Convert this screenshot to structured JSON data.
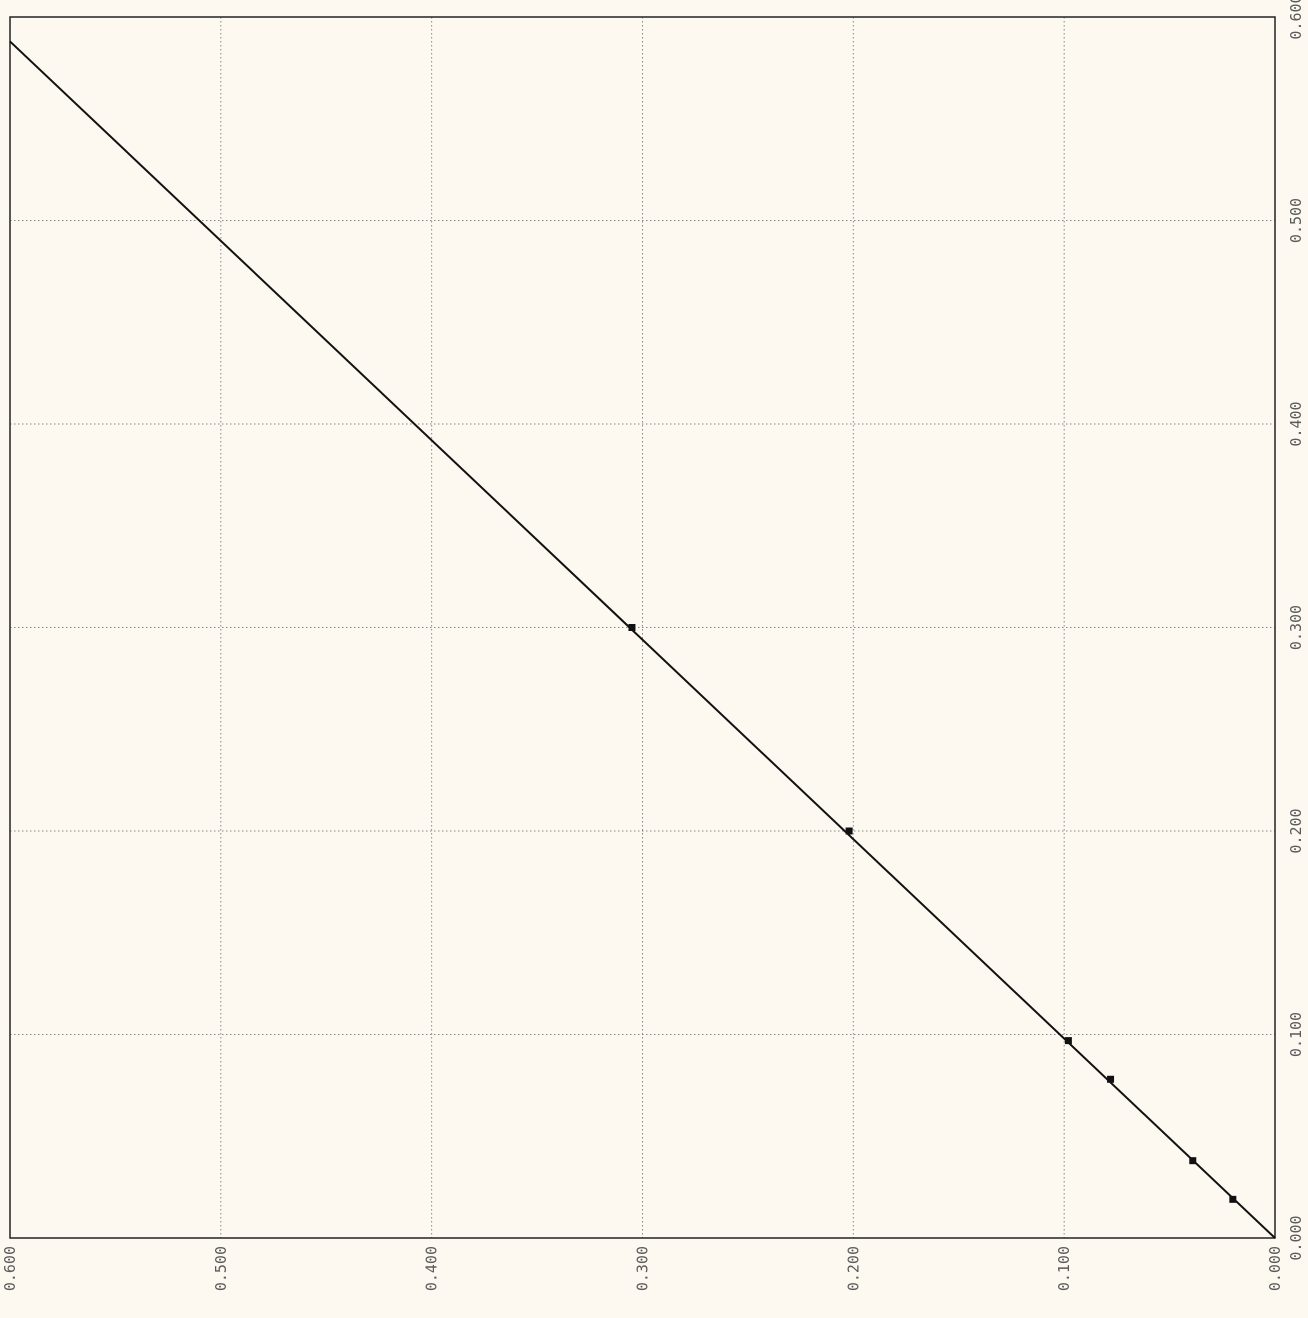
{
  "chart_data": {
    "type": "line",
    "title": "",
    "xlabel": "",
    "ylabel": "",
    "x_axis": {
      "reversed": true,
      "range": [
        0.6,
        0.0
      ],
      "ticks": [
        "0.600",
        "0.500",
        "0.400",
        "0.300",
        "0.200",
        "0.100",
        "0.000"
      ],
      "tick_values": [
        0.6,
        0.5,
        0.4,
        0.3,
        0.2,
        0.1,
        0.0
      ],
      "label_position": "bottom",
      "label_orientation": "rotated"
    },
    "y_axis": {
      "range": [
        0.0,
        0.6
      ],
      "ticks": [
        "0.000",
        "0.100",
        "0.200",
        "0.300",
        "0.400",
        "0.500",
        "0.600"
      ],
      "tick_values": [
        0.0,
        0.1,
        0.2,
        0.3,
        0.4,
        0.5,
        0.6
      ],
      "label_position": "right",
      "label_orientation": "rotated"
    },
    "grid": true,
    "grid_style": "dotted",
    "legend": "none",
    "series": [
      {
        "line": {
          "from": [
            0.6,
            0.588
          ],
          "to": [
            0.0,
            0.0
          ]
        },
        "marker_points": [
          [
            0.305,
            0.3
          ],
          [
            0.202,
            0.2
          ],
          [
            0.098,
            0.097
          ],
          [
            0.078,
            0.078
          ],
          [
            0.039,
            0.038
          ],
          [
            0.02,
            0.019
          ]
        ]
      }
    ],
    "colors": {
      "background": "#fdf9f1",
      "line": "#111111",
      "grid": "#888888",
      "frame": "#222222",
      "tick_label": "#5a5a5a"
    }
  }
}
